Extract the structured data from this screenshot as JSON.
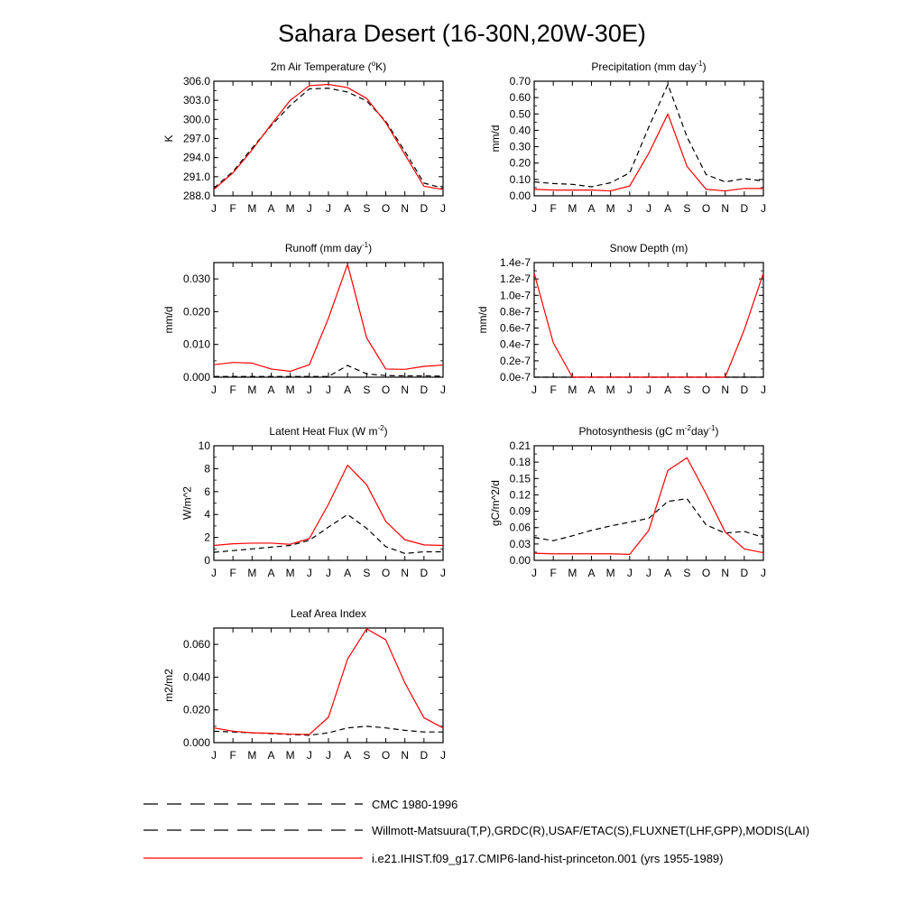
{
  "figure_title": "Sahara Desert (16-30N,20W-30E)",
  "colors": {
    "model": "#ff0000",
    "obs": "#000000",
    "frame": "#000000"
  },
  "months": [
    "J",
    "F",
    "M",
    "A",
    "M",
    "J",
    "J",
    "A",
    "S",
    "O",
    "N",
    "D",
    "J"
  ],
  "legend": {
    "entries": [
      {
        "label": "CMC 1980-1996",
        "style": "dashed",
        "color": "#000000"
      },
      {
        "label": "Willmott-Matsuura(T,P),GRDC(R),USAF/ETAC(S),FLUXNET(LHF,GPP),MODIS(LAI)",
        "style": "dashed",
        "color": "#000000"
      },
      {
        "label": "i.e21.IHIST.f09_g17.CMIP6-land-hist-princeton.001 (yrs 1955-1989)",
        "style": "solid",
        "color": "#ff0000"
      }
    ]
  },
  "chart_data": [
    {
      "type": "line",
      "title": "2m Air Temperature (",
      "title_sup": "o",
      "title_tail": "K)",
      "ylabel": "K",
      "ylim": [
        288.0,
        306.0
      ],
      "yticks": [
        "288.0",
        "291.0",
        "294.0",
        "297.0",
        "300.0",
        "303.0",
        "306.0"
      ],
      "ytick_values": [
        288,
        291,
        294,
        297,
        300,
        303,
        306
      ],
      "series": [
        {
          "style": "solid",
          "values": [
            289.0,
            291.6,
            295.2,
            299.2,
            303.0,
            305.3,
            305.5,
            305.0,
            303.3,
            299.5,
            294.5,
            289.5,
            289.0
          ]
        },
        {
          "style": "dashed",
          "values": [
            289.2,
            291.8,
            295.5,
            299.0,
            302.2,
            304.8,
            304.9,
            304.3,
            302.9,
            299.7,
            295.0,
            290.0,
            289.2
          ]
        }
      ]
    },
    {
      "type": "line",
      "title": "Precipitation (mm day",
      "title_sup": "-1",
      "title_tail": ")",
      "ylabel": "mm/d",
      "ylim": [
        0.0,
        0.7
      ],
      "yticks": [
        "0.00",
        "0.10",
        "0.20",
        "0.30",
        "0.40",
        "0.50",
        "0.60",
        "0.70"
      ],
      "ytick_values": [
        0,
        0.1,
        0.2,
        0.3,
        0.4,
        0.5,
        0.6,
        0.7
      ],
      "series": [
        {
          "style": "solid",
          "values": [
            0.04,
            0.035,
            0.035,
            0.035,
            0.03,
            0.06,
            0.26,
            0.5,
            0.18,
            0.04,
            0.03,
            0.045,
            0.045
          ]
        },
        {
          "style": "dashed",
          "values": [
            0.085,
            0.075,
            0.07,
            0.055,
            0.08,
            0.14,
            0.42,
            0.68,
            0.36,
            0.13,
            0.085,
            0.105,
            0.09
          ]
        }
      ]
    },
    {
      "type": "line",
      "title": "Runoff (mm day",
      "title_sup": "-1",
      "title_tail": ")",
      "ylabel": "mm/d",
      "ylim": [
        0.0,
        0.035
      ],
      "yticks": [
        "0.000",
        "0.010",
        "0.020",
        "0.030"
      ],
      "ytick_values": [
        0,
        0.01,
        0.02,
        0.03
      ],
      "series": [
        {
          "style": "solid",
          "values": [
            0.0038,
            0.0045,
            0.0043,
            0.0025,
            0.0018,
            0.0038,
            0.018,
            0.0345,
            0.012,
            0.0025,
            0.0024,
            0.0033,
            0.0037
          ]
        },
        {
          "style": "dashed",
          "values": [
            0.0002,
            0.0002,
            0.0002,
            0.0002,
            0.0002,
            0.0002,
            0.0002,
            0.0036,
            0.001,
            0.0005,
            0.0004,
            0.0004,
            0.0003
          ]
        }
      ]
    },
    {
      "type": "line",
      "title": "Snow Depth (m)",
      "title_sup": "",
      "title_tail": "",
      "ylabel": "mm/d",
      "ylim": [
        0.0,
        1.4
      ],
      "yticks": [
        "0.0e-7",
        "0.2e-7",
        "0.4e-7",
        "0.6e-7",
        "0.8e-7",
        "1.0e-7",
        "1.2e-7",
        "1.4e-7"
      ],
      "ytick_values": [
        0,
        0.2,
        0.4,
        0.6,
        0.8,
        1.0,
        1.2,
        1.4
      ],
      "series": [
        {
          "style": "solid",
          "values": [
            1.27,
            0.42,
            0.0,
            0.0,
            0.0,
            0.0,
            0.0,
            0.0,
            0.0,
            0.0,
            0.0,
            0.58,
            1.27
          ]
        },
        {
          "style": "dashed",
          "values": [
            0,
            0,
            0,
            0,
            0,
            0,
            0,
            0,
            0,
            0,
            0,
            0,
            0
          ]
        }
      ]
    },
    {
      "type": "line",
      "title": "Latent Heat Flux (W m",
      "title_sup": "-2",
      "title_tail": ")",
      "ylabel": "W/m^2",
      "ylim": [
        0,
        10
      ],
      "yticks": [
        "0",
        "2",
        "4",
        "6",
        "8",
        "10"
      ],
      "ytick_values": [
        0,
        2,
        4,
        6,
        8,
        10
      ],
      "series": [
        {
          "style": "solid",
          "values": [
            1.3,
            1.45,
            1.5,
            1.5,
            1.4,
            1.9,
            4.9,
            8.3,
            6.6,
            3.4,
            1.8,
            1.35,
            1.3
          ]
        },
        {
          "style": "dashed",
          "values": [
            0.7,
            0.85,
            1.0,
            1.15,
            1.3,
            1.75,
            2.9,
            4.0,
            2.8,
            1.2,
            0.6,
            0.75,
            0.75
          ]
        }
      ]
    },
    {
      "type": "line",
      "title": "Photosynthesis (gC m",
      "title_sup": "-2",
      "title_mid": "day",
      "title_sup2": "-1",
      "title_tail": ")",
      "ylabel": "gC/m^2/d",
      "ylim": [
        0.0,
        0.21
      ],
      "yticks": [
        "0.00",
        "0.03",
        "0.06",
        "0.09",
        "0.12",
        "0.15",
        "0.18",
        "0.21"
      ],
      "ytick_values": [
        0,
        0.03,
        0.06,
        0.09,
        0.12,
        0.15,
        0.18,
        0.21
      ],
      "series": [
        {
          "style": "solid",
          "values": [
            0.013,
            0.012,
            0.012,
            0.012,
            0.012,
            0.011,
            0.055,
            0.165,
            0.188,
            0.122,
            0.052,
            0.021,
            0.014
          ]
        },
        {
          "style": "dashed",
          "values": [
            0.042,
            0.036,
            0.045,
            0.055,
            0.063,
            0.07,
            0.077,
            0.108,
            0.113,
            0.065,
            0.05,
            0.053,
            0.042
          ]
        }
      ]
    },
    {
      "type": "line",
      "title": "Leaf Area Index",
      "title_sup": "",
      "title_tail": "",
      "ylabel": "m2/m2",
      "ylim": [
        0.0,
        0.07
      ],
      "yticks": [
        "0.000",
        "0.020",
        "0.040",
        "0.060"
      ],
      "ytick_values": [
        0,
        0.02,
        0.04,
        0.06
      ],
      "series": [
        {
          "style": "solid",
          "values": [
            0.009,
            0.007,
            0.006,
            0.0057,
            0.0052,
            0.005,
            0.0155,
            0.051,
            0.0695,
            0.0628,
            0.0365,
            0.0152,
            0.009
          ]
        },
        {
          "style": "dashed",
          "values": [
            0.007,
            0.0065,
            0.006,
            0.0055,
            0.005,
            0.0045,
            0.006,
            0.009,
            0.01,
            0.009,
            0.0075,
            0.0065,
            0.0065
          ]
        }
      ]
    }
  ]
}
